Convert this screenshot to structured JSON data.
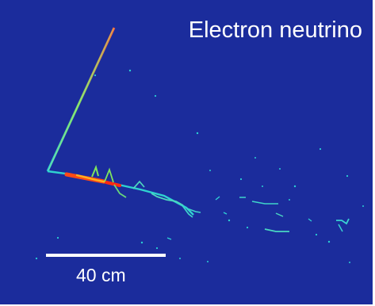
{
  "figure": {
    "title": "Electron neutrino",
    "scale_bar_label": "40 cm"
  },
  "colors": {
    "background": "#1b2c9c",
    "text": "#ffffff",
    "track_low": "#28d2c6",
    "track_mid": "#8fe05a",
    "track_high": "#ff3b12"
  }
}
